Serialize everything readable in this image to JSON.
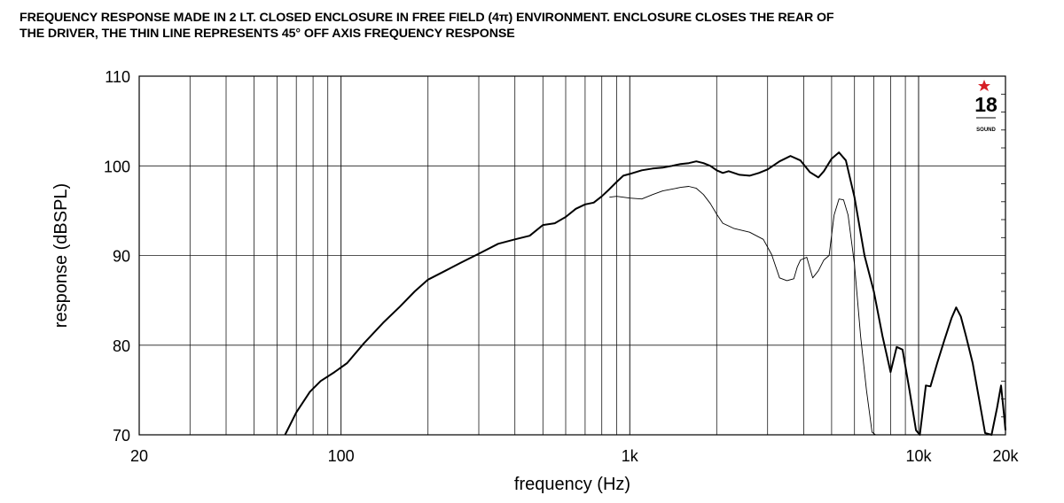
{
  "header": {
    "line1": "FREQUENCY RESPONSE MADE IN 2 LT. CLOSED ENCLOSURE IN FREE FIELD (4π) ENVIRONMENT. ENCLOSURE CLOSES THE REAR OF",
    "line2": "THE DRIVER, THE THIN LINE REPRESENTS 45° OFF AXIS FREQUENCY RESPONSE"
  },
  "logo": {
    "text": "18",
    "subtext": "SOUND"
  },
  "chart_data": {
    "type": "line",
    "xlabel": "frequency (Hz)",
    "ylabel": "response (dBSPL)",
    "xscale": "log",
    "xlim": [
      20,
      20000
    ],
    "ylim": [
      70,
      110
    ],
    "grid": true,
    "x_ticks": [
      {
        "value": 20,
        "label": "20"
      },
      {
        "value": 100,
        "label": "100"
      },
      {
        "value": 1000,
        "label": "1k"
      },
      {
        "value": 10000,
        "label": "10k"
      },
      {
        "value": 20000,
        "label": "20k"
      }
    ],
    "y_ticks": [
      {
        "value": 70,
        "label": "70"
      },
      {
        "value": 80,
        "label": "80"
      },
      {
        "value": 90,
        "label": "90"
      },
      {
        "value": 100,
        "label": "100"
      },
      {
        "value": 110,
        "label": "110"
      }
    ],
    "series": [
      {
        "style": "thick",
        "points": [
          [
            64,
            70
          ],
          [
            70,
            72.5
          ],
          [
            78,
            74.8
          ],
          [
            85,
            76
          ],
          [
            95,
            77
          ],
          [
            105,
            78
          ],
          [
            120,
            80.2
          ],
          [
            140,
            82.5
          ],
          [
            160,
            84.3
          ],
          [
            180,
            86
          ],
          [
            200,
            87.3
          ],
          [
            230,
            88.3
          ],
          [
            260,
            89.2
          ],
          [
            300,
            90.2
          ],
          [
            350,
            91.3
          ],
          [
            400,
            91.8
          ],
          [
            450,
            92.2
          ],
          [
            500,
            93.4
          ],
          [
            550,
            93.6
          ],
          [
            600,
            94.3
          ],
          [
            650,
            95.2
          ],
          [
            700,
            95.7
          ],
          [
            750,
            95.9
          ],
          [
            800,
            96.6
          ],
          [
            850,
            97.4
          ],
          [
            900,
            98.2
          ],
          [
            950,
            98.9
          ],
          [
            1000,
            99.1
          ],
          [
            1100,
            99.5
          ],
          [
            1200,
            99.7
          ],
          [
            1300,
            99.8
          ],
          [
            1400,
            100
          ],
          [
            1500,
            100.2
          ],
          [
            1600,
            100.3
          ],
          [
            1700,
            100.5
          ],
          [
            1800,
            100.3
          ],
          [
            1900,
            100
          ],
          [
            2000,
            99.5
          ],
          [
            2100,
            99.2
          ],
          [
            2200,
            99.4
          ],
          [
            2400,
            99
          ],
          [
            2600,
            98.9
          ],
          [
            2800,
            99.2
          ],
          [
            3000,
            99.6
          ],
          [
            3300,
            100.5
          ],
          [
            3600,
            101.1
          ],
          [
            3900,
            100.6
          ],
          [
            4200,
            99.3
          ],
          [
            4500,
            98.7
          ],
          [
            4700,
            99.4
          ],
          [
            5000,
            100.8
          ],
          [
            5300,
            101.5
          ],
          [
            5600,
            100.6
          ],
          [
            6000,
            96.5
          ],
          [
            6500,
            90
          ],
          [
            7000,
            86
          ],
          [
            7500,
            81
          ],
          [
            8000,
            77
          ],
          [
            8400,
            79.8
          ],
          [
            8800,
            79.5
          ],
          [
            9300,
            75
          ],
          [
            9800,
            70.5
          ],
          [
            10100,
            70
          ],
          [
            10600,
            75.5
          ],
          [
            11000,
            75.4
          ],
          [
            11600,
            78
          ],
          [
            12300,
            80.6
          ],
          [
            13000,
            83
          ],
          [
            13500,
            84.2
          ],
          [
            14000,
            83.2
          ],
          [
            14600,
            81
          ],
          [
            15400,
            78
          ],
          [
            16200,
            74
          ],
          [
            17000,
            70.2
          ],
          [
            17900,
            70
          ],
          [
            18700,
            73
          ],
          [
            19300,
            75.5
          ],
          [
            19800,
            72
          ],
          [
            20000,
            70.5
          ]
        ]
      },
      {
        "style": "thin",
        "points": [
          [
            850,
            96.5
          ],
          [
            900,
            96.6
          ],
          [
            950,
            96.5
          ],
          [
            1000,
            96.4
          ],
          [
            1100,
            96.3
          ],
          [
            1200,
            96.8
          ],
          [
            1300,
            97.2
          ],
          [
            1400,
            97.4
          ],
          [
            1500,
            97.6
          ],
          [
            1600,
            97.7
          ],
          [
            1700,
            97.5
          ],
          [
            1800,
            96.8
          ],
          [
            1900,
            95.8
          ],
          [
            2000,
            94.6
          ],
          [
            2100,
            93.6
          ],
          [
            2300,
            93
          ],
          [
            2600,
            92.6
          ],
          [
            2900,
            91.8
          ],
          [
            3100,
            90.1
          ],
          [
            3300,
            87.5
          ],
          [
            3500,
            87.2
          ],
          [
            3700,
            87.4
          ],
          [
            3800,
            88.7
          ],
          [
            3900,
            89.5
          ],
          [
            4100,
            89.8
          ],
          [
            4300,
            87.5
          ],
          [
            4500,
            88.3
          ],
          [
            4700,
            89.5
          ],
          [
            4900,
            90
          ],
          [
            5100,
            94.5
          ],
          [
            5300,
            96.3
          ],
          [
            5500,
            96.2
          ],
          [
            5700,
            94.5
          ],
          [
            6000,
            89
          ],
          [
            6300,
            81
          ],
          [
            6600,
            75
          ],
          [
            6900,
            70.3
          ],
          [
            7100,
            70
          ]
        ]
      }
    ]
  }
}
